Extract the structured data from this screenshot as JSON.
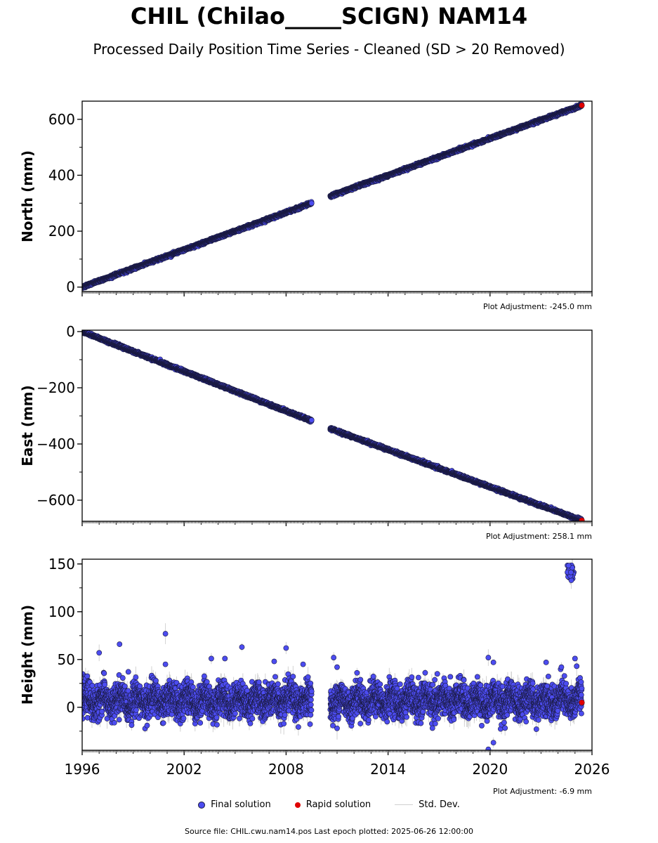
{
  "title": "CHIL (Chilao_____SCIGN) NAM14",
  "subtitle": "Processed Daily Position Time Series - Cleaned (SD > 20 Removed)",
  "colors": {
    "final": "#4c4cf0",
    "rapid": "#e00000",
    "std": "#c8c8c8",
    "edge": "#1a1a40"
  },
  "legend": {
    "final": "Final solution",
    "rapid": "Rapid solution",
    "std": "Std. Dev."
  },
  "source": "Source file: CHIL.cwu.nam14.pos  Last epoch plotted: 2025-06-26 12:00:00",
  "chart_data": [
    {
      "type": "scatter",
      "ylabel": "North (mm)",
      "adjustment": "Plot Adjustment: -245.0 mm",
      "xlim": [
        1996.0,
        2026.0
      ],
      "ylim": [
        -16,
        665
      ],
      "yticks": [
        0,
        200,
        400,
        600
      ],
      "yticklabels": [
        "0",
        "200",
        "400",
        "600"
      ],
      "xticklabels_shown": false,
      "data_gap": [
        2009.5,
        2010.6
      ],
      "series": [
        {
          "segment": 1,
          "x": [
            1996.0,
            2009.5
          ],
          "y": [
            0,
            300
          ]
        },
        {
          "segment": 2,
          "x": [
            2010.6,
            2025.4
          ],
          "y": [
            325,
            650
          ]
        }
      ],
      "rapid": {
        "x": 2025.4,
        "y": 650
      }
    },
    {
      "type": "scatter",
      "ylabel": "East (mm)",
      "adjustment": "Plot Adjustment: 258.1 mm",
      "xlim": [
        1996.0,
        2026.0
      ],
      "ylim": [
        -675,
        5
      ],
      "yticks": [
        0,
        -200,
        -400,
        -600
      ],
      "yticklabels": [
        "0",
        "−200",
        "−400",
        "−600"
      ],
      "xticklabels_shown": false,
      "data_gap": [
        2009.5,
        2010.6
      ],
      "series": [
        {
          "segment": 1,
          "x": [
            1996.0,
            2009.5
          ],
          "y": [
            0,
            -318
          ]
        },
        {
          "segment": 2,
          "x": [
            2010.6,
            2025.4
          ],
          "y": [
            -345,
            -672
          ]
        }
      ],
      "rapid": {
        "x": 2025.4,
        "y": -672
      }
    },
    {
      "type": "scatter",
      "ylabel": "Height (mm)",
      "adjustment": "Plot Adjustment: -6.9 mm",
      "xlim": [
        1996.0,
        2026.0
      ],
      "ylim": [
        -45,
        155
      ],
      "yticks": [
        0,
        50,
        100,
        150
      ],
      "yticklabels": [
        "0",
        "50",
        "100",
        "150"
      ],
      "xticks": [
        1996,
        2002,
        2008,
        2014,
        2020,
        2026
      ],
      "xticklabels": [
        "1996",
        "2002",
        "2008",
        "2014",
        "2020",
        "2026"
      ],
      "xticklabels_shown": true,
      "data_gap": [
        2009.5,
        2010.6
      ],
      "baseline_mean": 7,
      "scatter_spread": 12,
      "outliers": [
        {
          "x": 1997.0,
          "y": 57
        },
        {
          "x": 1998.2,
          "y": 66
        },
        {
          "x": 2000.9,
          "y": 77
        },
        {
          "x": 2000.9,
          "y": 45
        },
        {
          "x": 2003.6,
          "y": 51
        },
        {
          "x": 2004.4,
          "y": 51
        },
        {
          "x": 2005.4,
          "y": 63
        },
        {
          "x": 2007.3,
          "y": 48
        },
        {
          "x": 2008.0,
          "y": 62
        },
        {
          "x": 2009.0,
          "y": 45
        },
        {
          "x": 2010.8,
          "y": 52
        },
        {
          "x": 2011.0,
          "y": 42
        },
        {
          "x": 2011.0,
          "y": -22
        },
        {
          "x": 2016.9,
          "y": 35
        },
        {
          "x": 2019.9,
          "y": 52
        },
        {
          "x": 2020.2,
          "y": 47
        },
        {
          "x": 2019.4,
          "y": -8
        },
        {
          "x": 2019.9,
          "y": -44
        },
        {
          "x": 2020.2,
          "y": -37
        },
        {
          "x": 2023.3,
          "y": 47
        },
        {
          "x": 2024.2,
          "y": 42
        },
        {
          "x": 2025.0,
          "y": 51
        },
        {
          "x": 2025.1,
          "y": 43
        }
      ],
      "spike": {
        "x": [
          2024.55,
          2024.95
        ],
        "y": [
          132,
          151
        ]
      },
      "rapid": {
        "x": 2025.4,
        "y": 5
      }
    }
  ]
}
